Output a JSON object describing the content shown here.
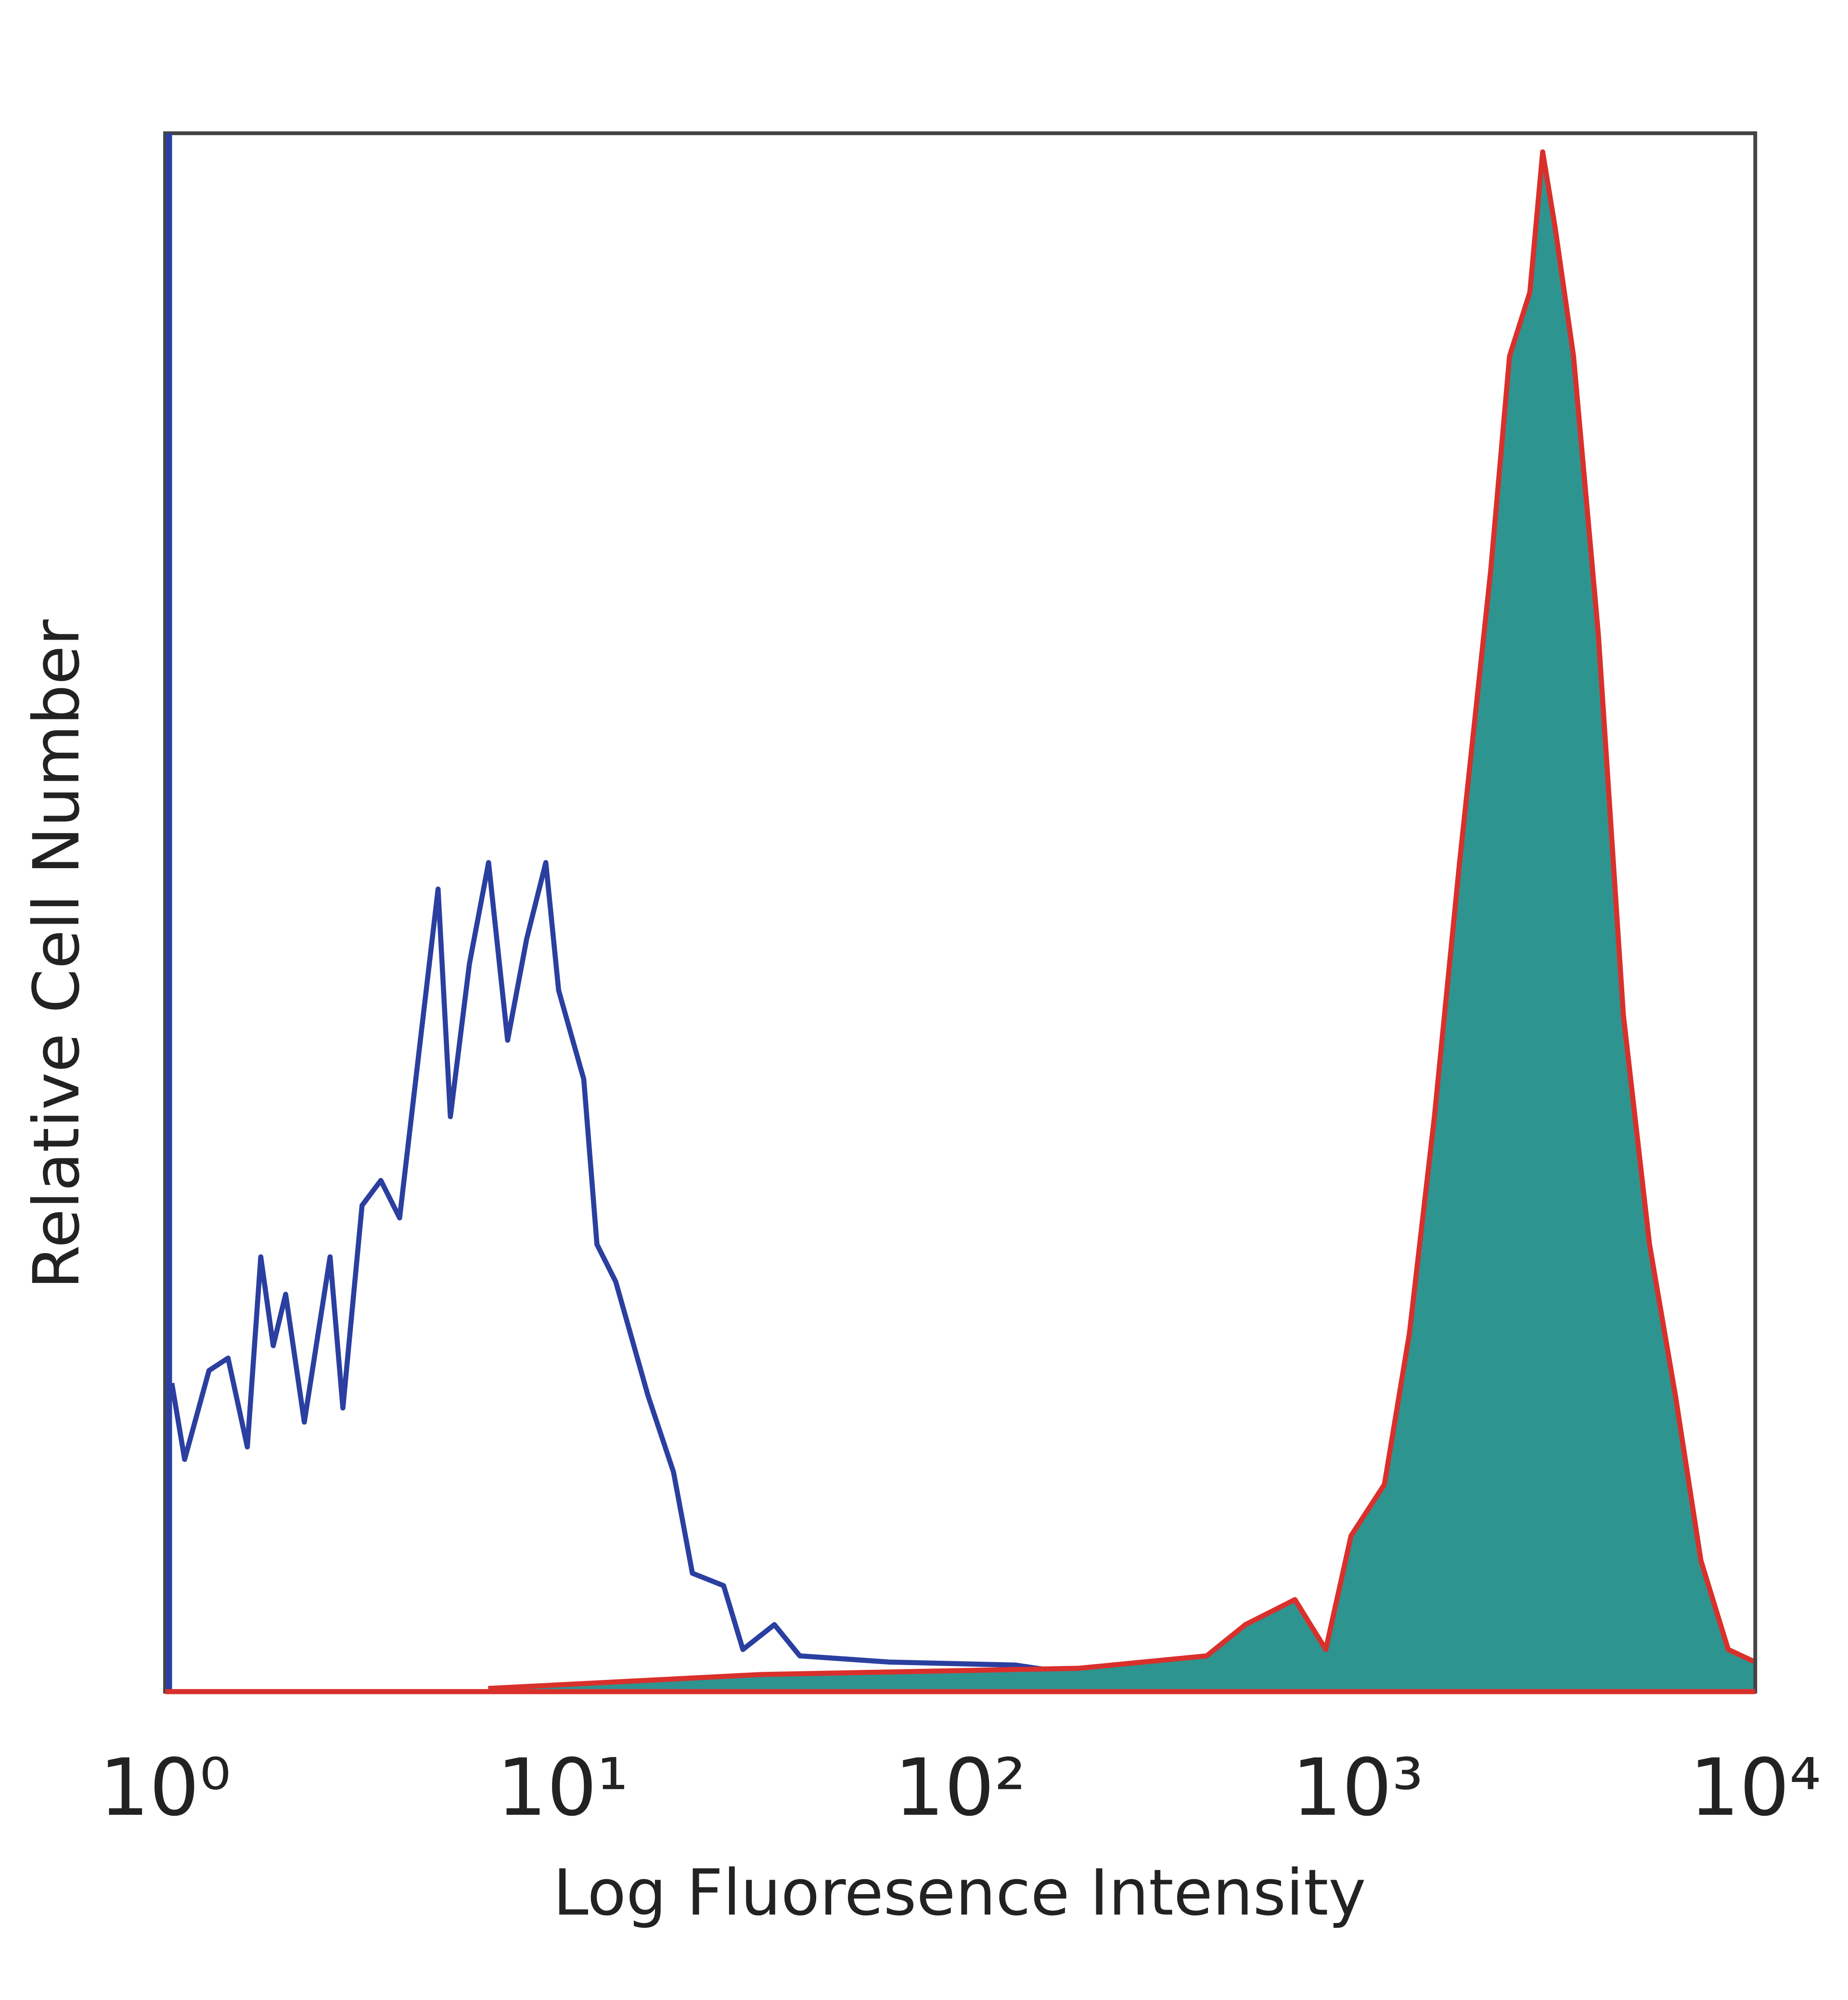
{
  "chart_data": {
    "type": "histogram-overlay",
    "x_label": "Log Fluoresence Intensity",
    "y_label": "Relative Cell Number",
    "xscale": "log",
    "xlim": [
      1,
      10000
    ],
    "xticks": [
      {
        "value": 1,
        "label": "10⁰"
      },
      {
        "value": 10,
        "label": "10¹"
      },
      {
        "value": 100,
        "label": "10²"
      },
      {
        "value": 1000,
        "label": "10³"
      },
      {
        "value": 10000,
        "label": "10⁴"
      }
    ],
    "ylim": [
      0,
      100
    ],
    "series": [
      {
        "color": "#2b3fa0",
        "fill": "none",
        "x": [
          1.04,
          1.12,
          1.29,
          1.44,
          1.61,
          1.74,
          1.87,
          2.01,
          2.24,
          2.6,
          2.8,
          3.13,
          3.49,
          3.89,
          4.35,
          4.86,
          5.22,
          5.83,
          6.51,
          7.27,
          8.12,
          9.07,
          9.77,
          11.3,
          12.2,
          13.6,
          16.4,
          19.0,
          21.2,
          25.4,
          28.4,
          34.1,
          39.5,
          66.3,
          138,
          199,
          288
        ],
        "values": [
          19.8,
          14.9,
          20.6,
          21.4,
          15.7,
          27.9,
          22.2,
          25.5,
          17.3,
          27.9,
          18.2,
          31.2,
          32.8,
          30.4,
          41.0,
          51.5,
          36.9,
          46.7,
          53.2,
          41.8,
          48.3,
          53.2,
          45.0,
          39.3,
          28.7,
          26.3,
          19.0,
          14.1,
          7.6,
          6.8,
          2.7,
          4.3,
          2.3,
          1.9,
          1.7,
          1.1,
          0.2
        ]
      },
      {
        "color": "#d9302c",
        "fill": "#2e9490",
        "x": [
          6.5,
          31.6,
          199,
          417,
          522,
          695,
          831,
          962,
          1167,
          1349,
          1560,
          1804,
          2160,
          2410,
          2710,
          2920,
          3140,
          3490,
          4030,
          4660,
          5420,
          6300,
          7300,
          8550,
          10000
        ],
        "values": [
          0.2,
          1.1,
          1.5,
          2.3,
          4.3,
          5.9,
          2.7,
          10.0,
          13.3,
          23.0,
          36.9,
          53.2,
          71.9,
          85.7,
          89.8,
          98.8,
          93.9,
          85.7,
          67.8,
          43.4,
          28.7,
          19.0,
          8.4,
          2.7,
          1.9
        ]
      }
    ]
  }
}
